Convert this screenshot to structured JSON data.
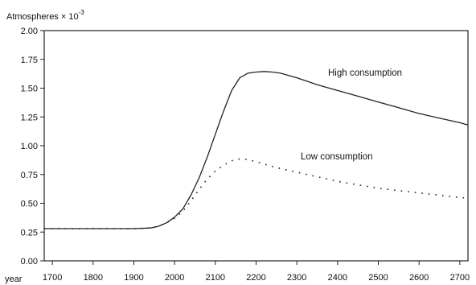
{
  "chart_data": {
    "type": "line",
    "title": "",
    "ylabel": "Atmospheres × 10",
    "ylabel_exponent": "-3",
    "xlabel": "year",
    "xlim": [
      1680,
      2720
    ],
    "ylim": [
      0,
      2
    ],
    "x_ticks": [
      "1700",
      "1800",
      "1900",
      "2000",
      "2100",
      "2200",
      "2300",
      "2400",
      "2500",
      "2600",
      "2700"
    ],
    "y_ticks": [
      "0.00",
      "0.25",
      "0.50",
      "0.75",
      "1.00",
      "1.25",
      "1.50",
      "1.75",
      "2.00"
    ],
    "grid": false,
    "legend": "none",
    "series": [
      {
        "name": "High consumption",
        "style": "solid",
        "color": "#222222",
        "x": [
          1680,
          1700,
          1800,
          1900,
          1940,
          1960,
          1980,
          2000,
          2020,
          2040,
          2060,
          2080,
          2100,
          2120,
          2140,
          2160,
          2180,
          2200,
          2220,
          2240,
          2260,
          2300,
          2350,
          2400,
          2450,
          2500,
          2550,
          2600,
          2650,
          2700,
          2720
        ],
        "y": [
          0.28,
          0.28,
          0.28,
          0.28,
          0.285,
          0.3,
          0.33,
          0.38,
          0.45,
          0.57,
          0.72,
          0.9,
          1.1,
          1.3,
          1.48,
          1.59,
          1.63,
          1.64,
          1.645,
          1.64,
          1.63,
          1.59,
          1.53,
          1.48,
          1.43,
          1.38,
          1.33,
          1.28,
          1.24,
          1.2,
          1.18
        ]
      },
      {
        "name": "Low consumption",
        "style": "dotted",
        "color": "#222222",
        "x": [
          1680,
          1700,
          1800,
          1900,
          1940,
          1960,
          1980,
          2000,
          2020,
          2040,
          2060,
          2080,
          2100,
          2120,
          2140,
          2160,
          2180,
          2200,
          2220,
          2250,
          2300,
          2350,
          2400,
          2450,
          2500,
          2550,
          2600,
          2650,
          2700,
          2720
        ],
        "y": [
          0.28,
          0.28,
          0.28,
          0.28,
          0.285,
          0.3,
          0.33,
          0.37,
          0.43,
          0.52,
          0.62,
          0.71,
          0.78,
          0.83,
          0.87,
          0.885,
          0.88,
          0.86,
          0.84,
          0.81,
          0.77,
          0.73,
          0.69,
          0.66,
          0.63,
          0.61,
          0.59,
          0.57,
          0.55,
          0.545
        ]
      }
    ],
    "annotations": [
      {
        "text": "High consumption",
        "series": "High consumption"
      },
      {
        "text": "Low consumption",
        "series": "Low consumption"
      }
    ]
  }
}
